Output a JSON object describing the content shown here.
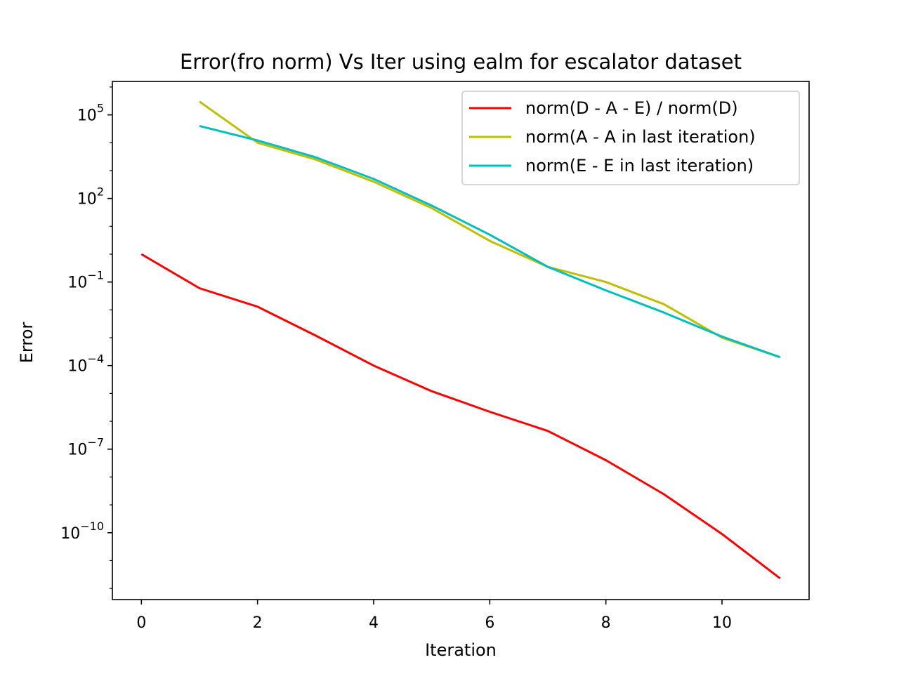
{
  "chart_data": {
    "type": "line",
    "title": "Error(fro norm) Vs Iter using ealm for escalator dataset",
    "xlabel": "Iteration",
    "ylabel": "Error",
    "xlim": [
      -0.5,
      11.5
    ],
    "ylim_exponent": [
      -12.4,
      6.2
    ],
    "y_scale": "log",
    "x_ticks": [
      0,
      2,
      4,
      6,
      8,
      10
    ],
    "y_tick_exponents": [
      5,
      2,
      -1,
      -4,
      -7,
      -10
    ],
    "grid": false,
    "legend_position": "top-right",
    "series": [
      {
        "name": "norm(D - A - E) / norm(D)",
        "color": "#ff0000",
        "x": [
          0,
          1,
          2,
          3,
          4,
          5,
          6,
          7,
          8,
          9,
          10,
          11
        ],
        "y": [
          1.0,
          0.06,
          0.013,
          0.0012,
          0.0001,
          1.2e-05,
          2.2e-06,
          4.5e-07,
          4e-08,
          2.4e-09,
          9e-11,
          2.3e-12
        ]
      },
      {
        "name": "norm(A - A in last iteration)",
        "color": "#bfbf00",
        "x": [
          1,
          2,
          3,
          4,
          5,
          6,
          7,
          8,
          9,
          10,
          11
        ],
        "y": [
          300000,
          10000,
          2500,
          400,
          45,
          3,
          0.35,
          0.1,
          0.016,
          0.001,
          0.0002
        ]
      },
      {
        "name": "norm(E - E in last iteration)",
        "color": "#00bfbf",
        "x": [
          1,
          2,
          3,
          4,
          5,
          6,
          7,
          8,
          9,
          10,
          11
        ],
        "y": [
          40000,
          12000,
          3000,
          500,
          55,
          5,
          0.35,
          0.05,
          0.008,
          0.0011,
          0.0002
        ]
      }
    ]
  }
}
